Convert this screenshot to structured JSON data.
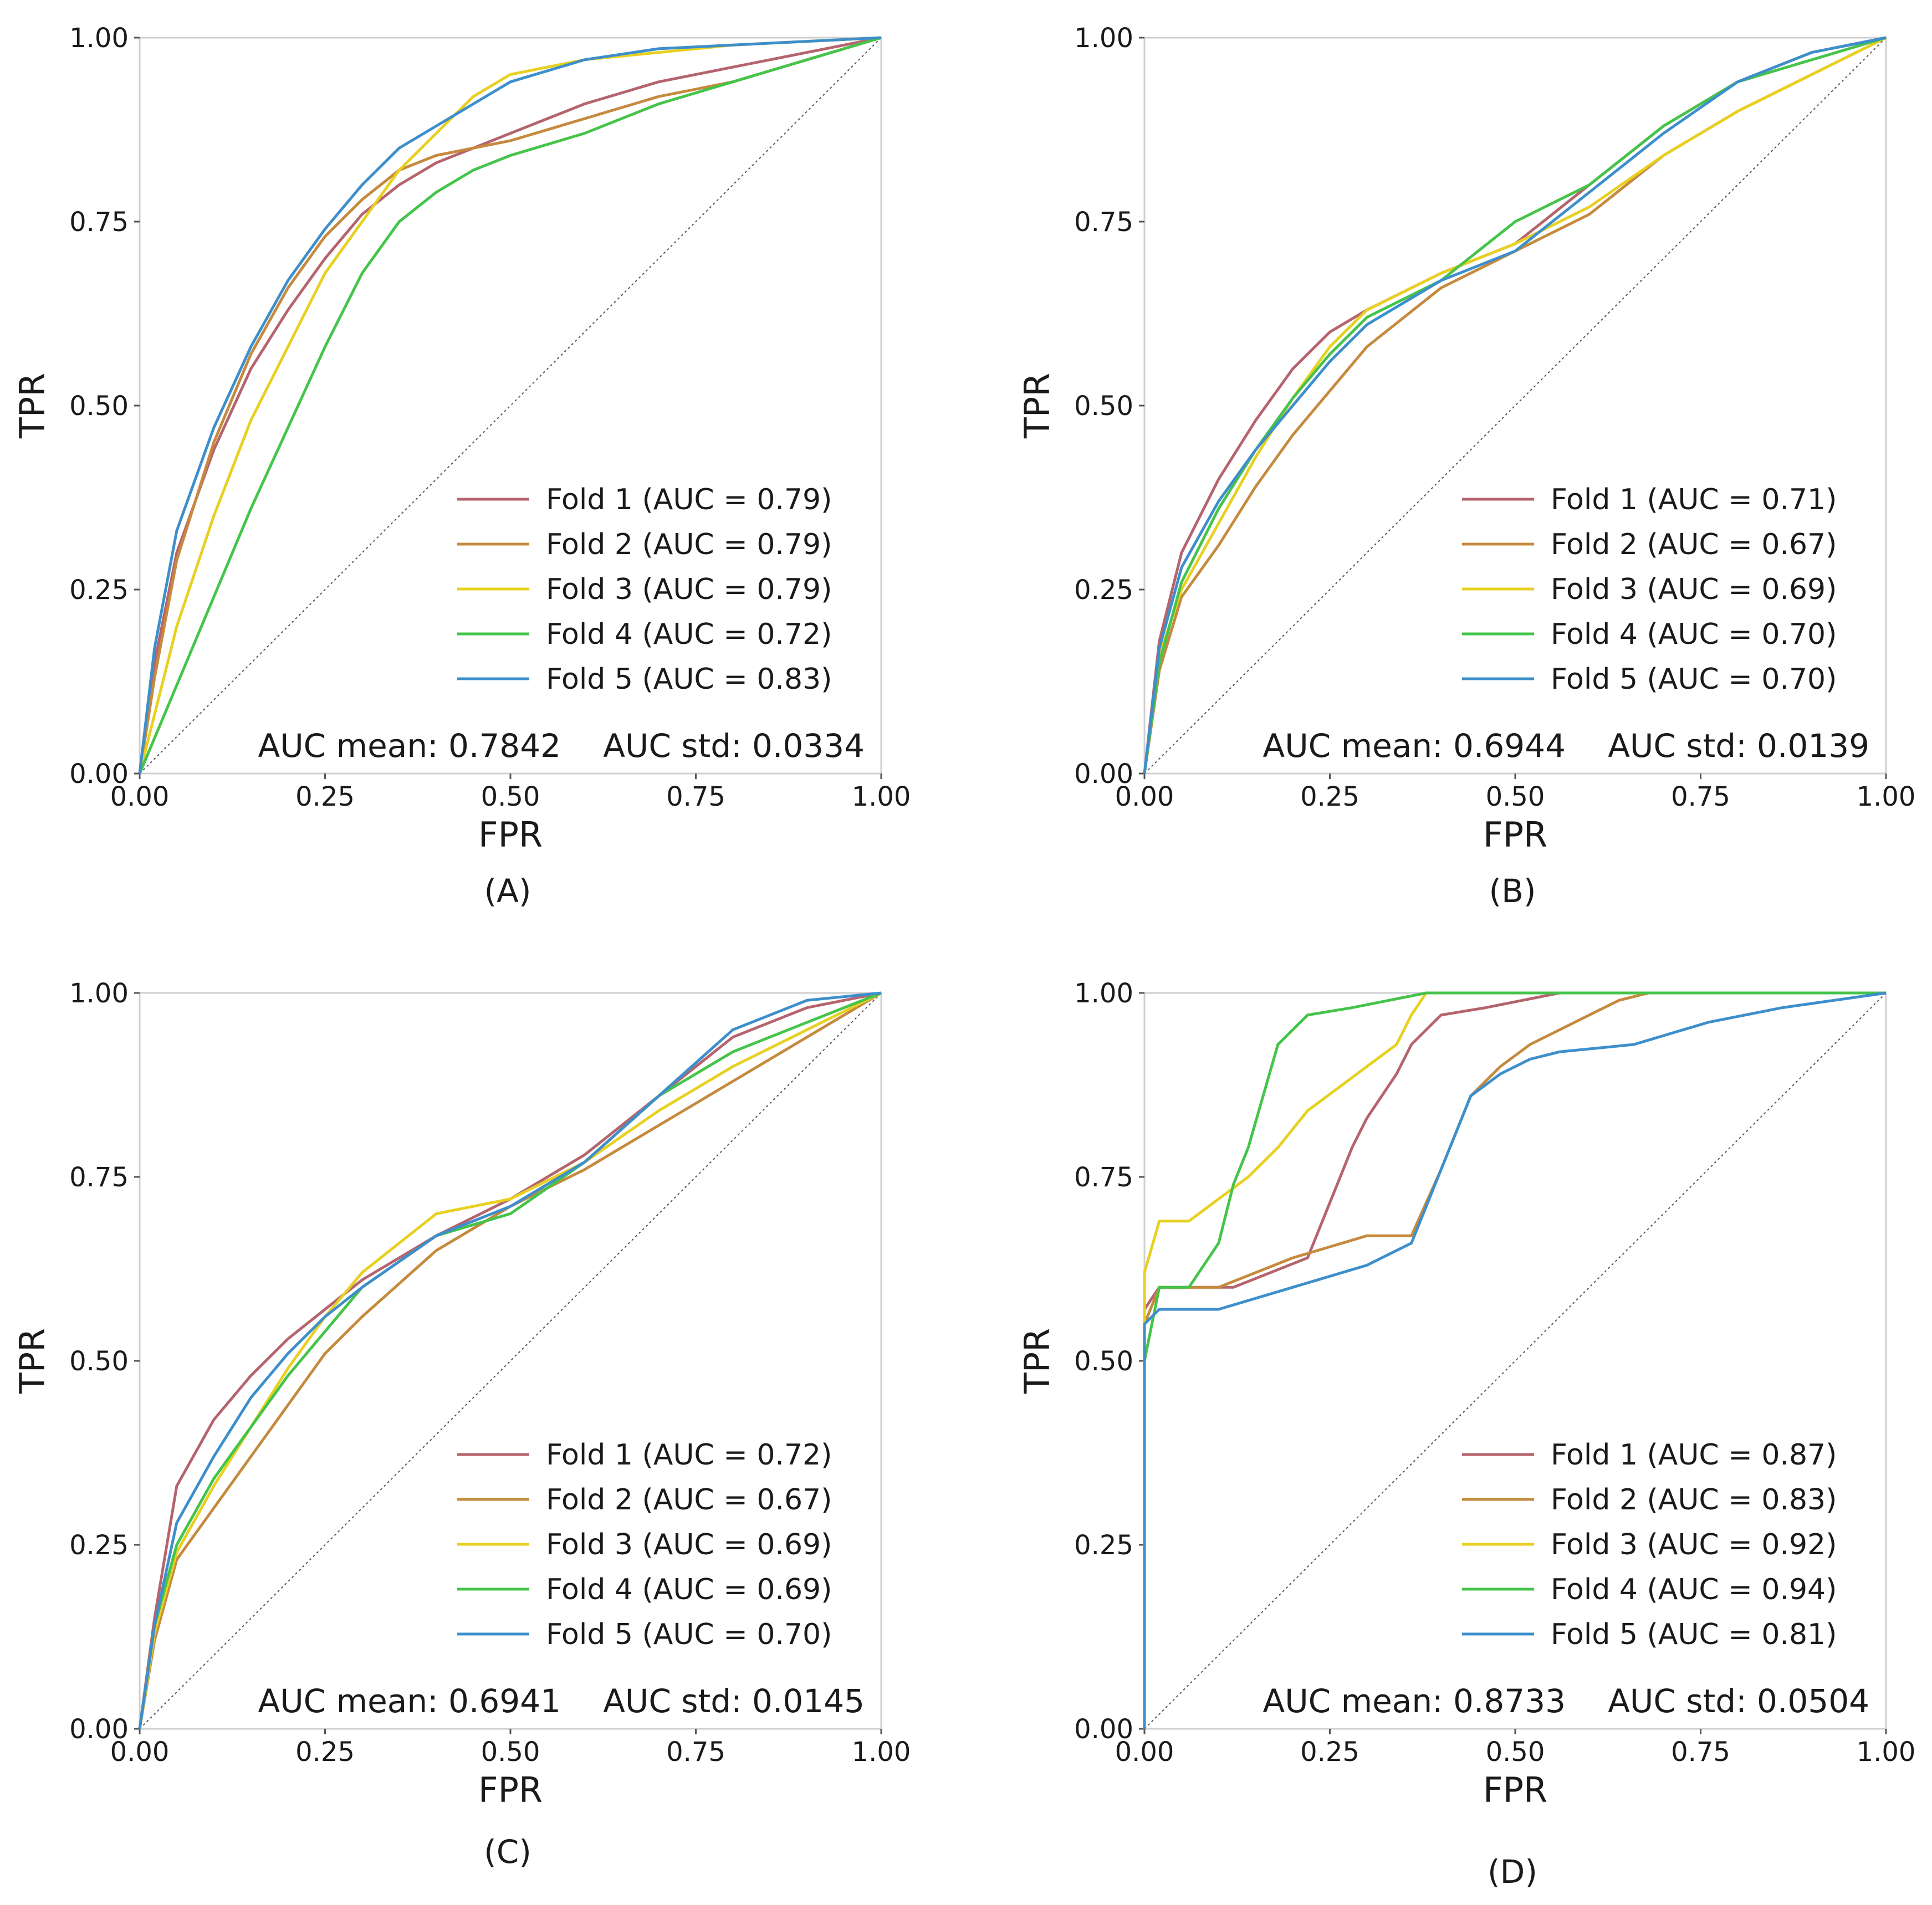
{
  "chart_data": [
    {
      "type": "line",
      "panel_label": "(A)",
      "xlabel": "FPR",
      "ylabel": "TPR",
      "xlim": [
        0,
        1
      ],
      "ylim": [
        0,
        1
      ],
      "xticks": [
        "0.00",
        "0.25",
        "0.50",
        "0.75",
        "1.00"
      ],
      "yticks": [
        "0.00",
        "0.25",
        "0.50",
        "0.75",
        "1.00"
      ],
      "legend_position": "lower-right",
      "summary_mean": "AUC mean: 0.7842",
      "summary_std": "AUC std: 0.0334",
      "series": [
        {
          "name": "Fold 1 (AUC = 0.79)",
          "color": "#b5646e",
          "x": [
            0,
            0.02,
            0.05,
            0.1,
            0.15,
            0.2,
            0.25,
            0.3,
            0.35,
            0.4,
            0.5,
            0.6,
            0.7,
            0.8,
            0.9,
            1
          ],
          "y": [
            0,
            0.15,
            0.3,
            0.44,
            0.55,
            0.63,
            0.7,
            0.76,
            0.8,
            0.83,
            0.87,
            0.91,
            0.94,
            0.96,
            0.98,
            1
          ]
        },
        {
          "name": "Fold 2 (AUC = 0.79)",
          "color": "#c68a3e",
          "x": [
            0,
            0.02,
            0.05,
            0.1,
            0.15,
            0.2,
            0.25,
            0.3,
            0.35,
            0.4,
            0.5,
            0.6,
            0.7,
            0.8,
            0.9,
            1
          ],
          "y": [
            0,
            0.13,
            0.29,
            0.45,
            0.57,
            0.66,
            0.73,
            0.78,
            0.82,
            0.84,
            0.86,
            0.89,
            0.92,
            0.94,
            0.97,
            1
          ]
        },
        {
          "name": "Fold 3 (AUC = 0.79)",
          "color": "#e8d020",
          "x": [
            0,
            0.02,
            0.05,
            0.1,
            0.15,
            0.2,
            0.25,
            0.3,
            0.35,
            0.4,
            0.45,
            0.5,
            0.6,
            0.7,
            0.8,
            0.9,
            1
          ],
          "y": [
            0,
            0.08,
            0.2,
            0.35,
            0.48,
            0.58,
            0.68,
            0.75,
            0.82,
            0.87,
            0.92,
            0.95,
            0.97,
            0.98,
            0.99,
            0.995,
            1
          ]
        },
        {
          "name": "Fold 4 (AUC = 0.72)",
          "color": "#45c44a",
          "x": [
            0,
            0.05,
            0.1,
            0.15,
            0.2,
            0.25,
            0.3,
            0.35,
            0.4,
            0.45,
            0.5,
            0.6,
            0.7,
            0.8,
            0.9,
            1
          ],
          "y": [
            0,
            0.12,
            0.24,
            0.36,
            0.47,
            0.58,
            0.68,
            0.75,
            0.79,
            0.82,
            0.84,
            0.87,
            0.91,
            0.94,
            0.97,
            1
          ]
        },
        {
          "name": "Fold 5 (AUC = 0.83)",
          "color": "#3d8fcc",
          "x": [
            0,
            0.02,
            0.05,
            0.1,
            0.15,
            0.2,
            0.25,
            0.3,
            0.35,
            0.4,
            0.45,
            0.5,
            0.6,
            0.7,
            0.8,
            0.9,
            1
          ],
          "y": [
            0,
            0.17,
            0.33,
            0.47,
            0.58,
            0.67,
            0.74,
            0.8,
            0.85,
            0.88,
            0.91,
            0.94,
            0.97,
            0.985,
            0.99,
            0.995,
            1
          ]
        }
      ]
    },
    {
      "type": "line",
      "panel_label": "(B)",
      "xlabel": "FPR",
      "ylabel": "TPR",
      "xlim": [
        0,
        1
      ],
      "ylim": [
        0,
        1
      ],
      "xticks": [
        "0.00",
        "0.25",
        "0.50",
        "0.75",
        "1.00"
      ],
      "yticks": [
        "0.00",
        "0.25",
        "0.50",
        "0.75",
        "1.00"
      ],
      "legend_position": "lower-right",
      "summary_mean": "AUC mean: 0.6944",
      "summary_std": "AUC std: 0.0139",
      "series": [
        {
          "name": "Fold 1 (AUC = 0.71)",
          "color": "#b5646e",
          "x": [
            0,
            0.02,
            0.05,
            0.1,
            0.15,
            0.2,
            0.25,
            0.3,
            0.4,
            0.5,
            0.6,
            0.7,
            0.8,
            0.9,
            1
          ],
          "y": [
            0,
            0.18,
            0.3,
            0.4,
            0.48,
            0.55,
            0.6,
            0.63,
            0.68,
            0.72,
            0.8,
            0.88,
            0.94,
            0.98,
            1
          ]
        },
        {
          "name": "Fold 2 (AUC = 0.67)",
          "color": "#c68a3e",
          "x": [
            0,
            0.02,
            0.05,
            0.1,
            0.15,
            0.2,
            0.25,
            0.3,
            0.4,
            0.5,
            0.6,
            0.7,
            0.8,
            0.9,
            1
          ],
          "y": [
            0,
            0.14,
            0.24,
            0.31,
            0.39,
            0.46,
            0.52,
            0.58,
            0.66,
            0.71,
            0.76,
            0.84,
            0.9,
            0.95,
            1
          ]
        },
        {
          "name": "Fold 3 (AUC = 0.69)",
          "color": "#e8d020",
          "x": [
            0,
            0.02,
            0.05,
            0.1,
            0.15,
            0.2,
            0.25,
            0.3,
            0.4,
            0.5,
            0.6,
            0.7,
            0.8,
            0.9,
            1
          ],
          "y": [
            0,
            0.16,
            0.25,
            0.34,
            0.43,
            0.51,
            0.58,
            0.63,
            0.68,
            0.72,
            0.77,
            0.84,
            0.9,
            0.95,
            1
          ]
        },
        {
          "name": "Fold 4 (AUC = 0.70)",
          "color": "#45c44a",
          "x": [
            0,
            0.02,
            0.05,
            0.1,
            0.15,
            0.2,
            0.25,
            0.3,
            0.4,
            0.5,
            0.6,
            0.7,
            0.8,
            0.9,
            1
          ],
          "y": [
            0,
            0.15,
            0.26,
            0.36,
            0.44,
            0.51,
            0.57,
            0.62,
            0.67,
            0.75,
            0.8,
            0.88,
            0.94,
            0.97,
            1
          ]
        },
        {
          "name": "Fold 5 (AUC = 0.70)",
          "color": "#3d8fcc",
          "x": [
            0,
            0.02,
            0.05,
            0.1,
            0.15,
            0.2,
            0.25,
            0.3,
            0.4,
            0.5,
            0.6,
            0.7,
            0.8,
            0.9,
            1
          ],
          "y": [
            0,
            0.17,
            0.28,
            0.37,
            0.44,
            0.5,
            0.56,
            0.61,
            0.67,
            0.71,
            0.79,
            0.87,
            0.94,
            0.98,
            1
          ]
        }
      ]
    },
    {
      "type": "line",
      "panel_label": "(C)",
      "xlabel": "FPR",
      "ylabel": "TPR",
      "xlim": [
        0,
        1
      ],
      "ylim": [
        0,
        1
      ],
      "xticks": [
        "0.00",
        "0.25",
        "0.50",
        "0.75",
        "1.00"
      ],
      "yticks": [
        "0.00",
        "0.25",
        "0.50",
        "0.75",
        "1.00"
      ],
      "legend_position": "lower-right",
      "summary_mean": "AUC mean: 0.6941",
      "summary_std": "AUC std: 0.0145",
      "series": [
        {
          "name": "Fold 1 (AUC = 0.72)",
          "color": "#b5646e",
          "x": [
            0,
            0.02,
            0.05,
            0.1,
            0.15,
            0.2,
            0.25,
            0.3,
            0.4,
            0.5,
            0.6,
            0.7,
            0.8,
            0.9,
            1
          ],
          "y": [
            0,
            0.15,
            0.33,
            0.42,
            0.48,
            0.53,
            0.57,
            0.61,
            0.67,
            0.72,
            0.78,
            0.86,
            0.94,
            0.98,
            1
          ]
        },
        {
          "name": "Fold 2 (AUC = 0.67)",
          "color": "#c68a3e",
          "x": [
            0,
            0.02,
            0.05,
            0.1,
            0.15,
            0.2,
            0.25,
            0.3,
            0.4,
            0.5,
            0.6,
            0.7,
            0.8,
            0.9,
            1
          ],
          "y": [
            0,
            0.12,
            0.23,
            0.3,
            0.37,
            0.44,
            0.51,
            0.56,
            0.65,
            0.71,
            0.76,
            0.82,
            0.88,
            0.94,
            1
          ]
        },
        {
          "name": "Fold 3 (AUC = 0.69)",
          "color": "#e8d020",
          "x": [
            0,
            0.02,
            0.05,
            0.1,
            0.15,
            0.2,
            0.25,
            0.3,
            0.4,
            0.5,
            0.6,
            0.7,
            0.8,
            0.9,
            1
          ],
          "y": [
            0,
            0.13,
            0.24,
            0.33,
            0.41,
            0.49,
            0.56,
            0.62,
            0.7,
            0.72,
            0.77,
            0.84,
            0.9,
            0.95,
            1
          ]
        },
        {
          "name": "Fold 4 (AUC = 0.69)",
          "color": "#45c44a",
          "x": [
            0,
            0.02,
            0.05,
            0.1,
            0.15,
            0.2,
            0.25,
            0.3,
            0.4,
            0.5,
            0.6,
            0.7,
            0.8,
            0.9,
            1
          ],
          "y": [
            0,
            0.14,
            0.25,
            0.34,
            0.41,
            0.48,
            0.54,
            0.6,
            0.67,
            0.7,
            0.77,
            0.86,
            0.92,
            0.96,
            1
          ]
        },
        {
          "name": "Fold 5 (AUC = 0.70)",
          "color": "#3d8fcc",
          "x": [
            0,
            0.02,
            0.05,
            0.1,
            0.15,
            0.2,
            0.25,
            0.3,
            0.4,
            0.5,
            0.6,
            0.7,
            0.8,
            0.9,
            1
          ],
          "y": [
            0,
            0.14,
            0.28,
            0.37,
            0.45,
            0.51,
            0.56,
            0.6,
            0.67,
            0.71,
            0.77,
            0.86,
            0.95,
            0.99,
            1
          ]
        }
      ]
    },
    {
      "type": "line",
      "panel_label": "(D)",
      "xlabel": "FPR",
      "ylabel": "TPR",
      "xlim": [
        0,
        1
      ],
      "ylim": [
        0,
        1
      ],
      "xticks": [
        "0.00",
        "0.25",
        "0.50",
        "0.75",
        "1.00"
      ],
      "yticks": [
        "0.00",
        "0.25",
        "0.50",
        "0.75",
        "1.00"
      ],
      "legend_position": "lower-right",
      "summary_mean": "AUC mean: 0.8733",
      "summary_std": "AUC std: 0.0504",
      "series": [
        {
          "name": "Fold 1 (AUC = 0.87)",
          "color": "#b5646e",
          "x": [
            0,
            0,
            0.02,
            0.12,
            0.22,
            0.24,
            0.26,
            0.28,
            0.3,
            0.32,
            0.34,
            0.36,
            0.38,
            0.4,
            0.46,
            0.56,
            1
          ],
          "y": [
            0,
            0.57,
            0.6,
            0.6,
            0.64,
            0.69,
            0.74,
            0.79,
            0.83,
            0.86,
            0.89,
            0.93,
            0.95,
            0.97,
            0.98,
            1,
            1
          ]
        },
        {
          "name": "Fold 2 (AUC = 0.83)",
          "color": "#c68a3e",
          "x": [
            0,
            0,
            0.02,
            0.1,
            0.2,
            0.3,
            0.36,
            0.4,
            0.44,
            0.48,
            0.52,
            0.56,
            0.6,
            0.64,
            0.68,
            1
          ],
          "y": [
            0,
            0.55,
            0.6,
            0.6,
            0.64,
            0.67,
            0.67,
            0.76,
            0.86,
            0.9,
            0.93,
            0.95,
            0.97,
            0.99,
            1,
            1
          ]
        },
        {
          "name": "Fold 3 (AUC = 0.92)",
          "color": "#e8d020",
          "x": [
            0,
            0,
            0.02,
            0.06,
            0.1,
            0.14,
            0.18,
            0.22,
            0.26,
            0.3,
            0.34,
            0.36,
            0.38,
            1
          ],
          "y": [
            0,
            0.62,
            0.69,
            0.69,
            0.72,
            0.75,
            0.79,
            0.84,
            0.87,
            0.9,
            0.93,
            0.97,
            1,
            1
          ]
        },
        {
          "name": "Fold 4 (AUC = 0.94)",
          "color": "#45c44a",
          "x": [
            0,
            0,
            0.02,
            0.06,
            0.1,
            0.12,
            0.14,
            0.16,
            0.18,
            0.2,
            0.22,
            0.28,
            0.38,
            1
          ],
          "y": [
            0,
            0.5,
            0.6,
            0.6,
            0.66,
            0.74,
            0.79,
            0.86,
            0.93,
            0.95,
            0.97,
            0.98,
            1,
            1
          ]
        },
        {
          "name": "Fold 5 (AUC = 0.81)",
          "color": "#3d8fcc",
          "x": [
            0,
            0,
            0.02,
            0.1,
            0.2,
            0.3,
            0.36,
            0.4,
            0.44,
            0.48,
            0.52,
            0.56,
            0.66,
            0.76,
            0.86,
            1
          ],
          "y": [
            0,
            0.55,
            0.57,
            0.57,
            0.6,
            0.63,
            0.66,
            0.76,
            0.86,
            0.89,
            0.91,
            0.92,
            0.93,
            0.96,
            0.98,
            1
          ]
        }
      ]
    }
  ]
}
